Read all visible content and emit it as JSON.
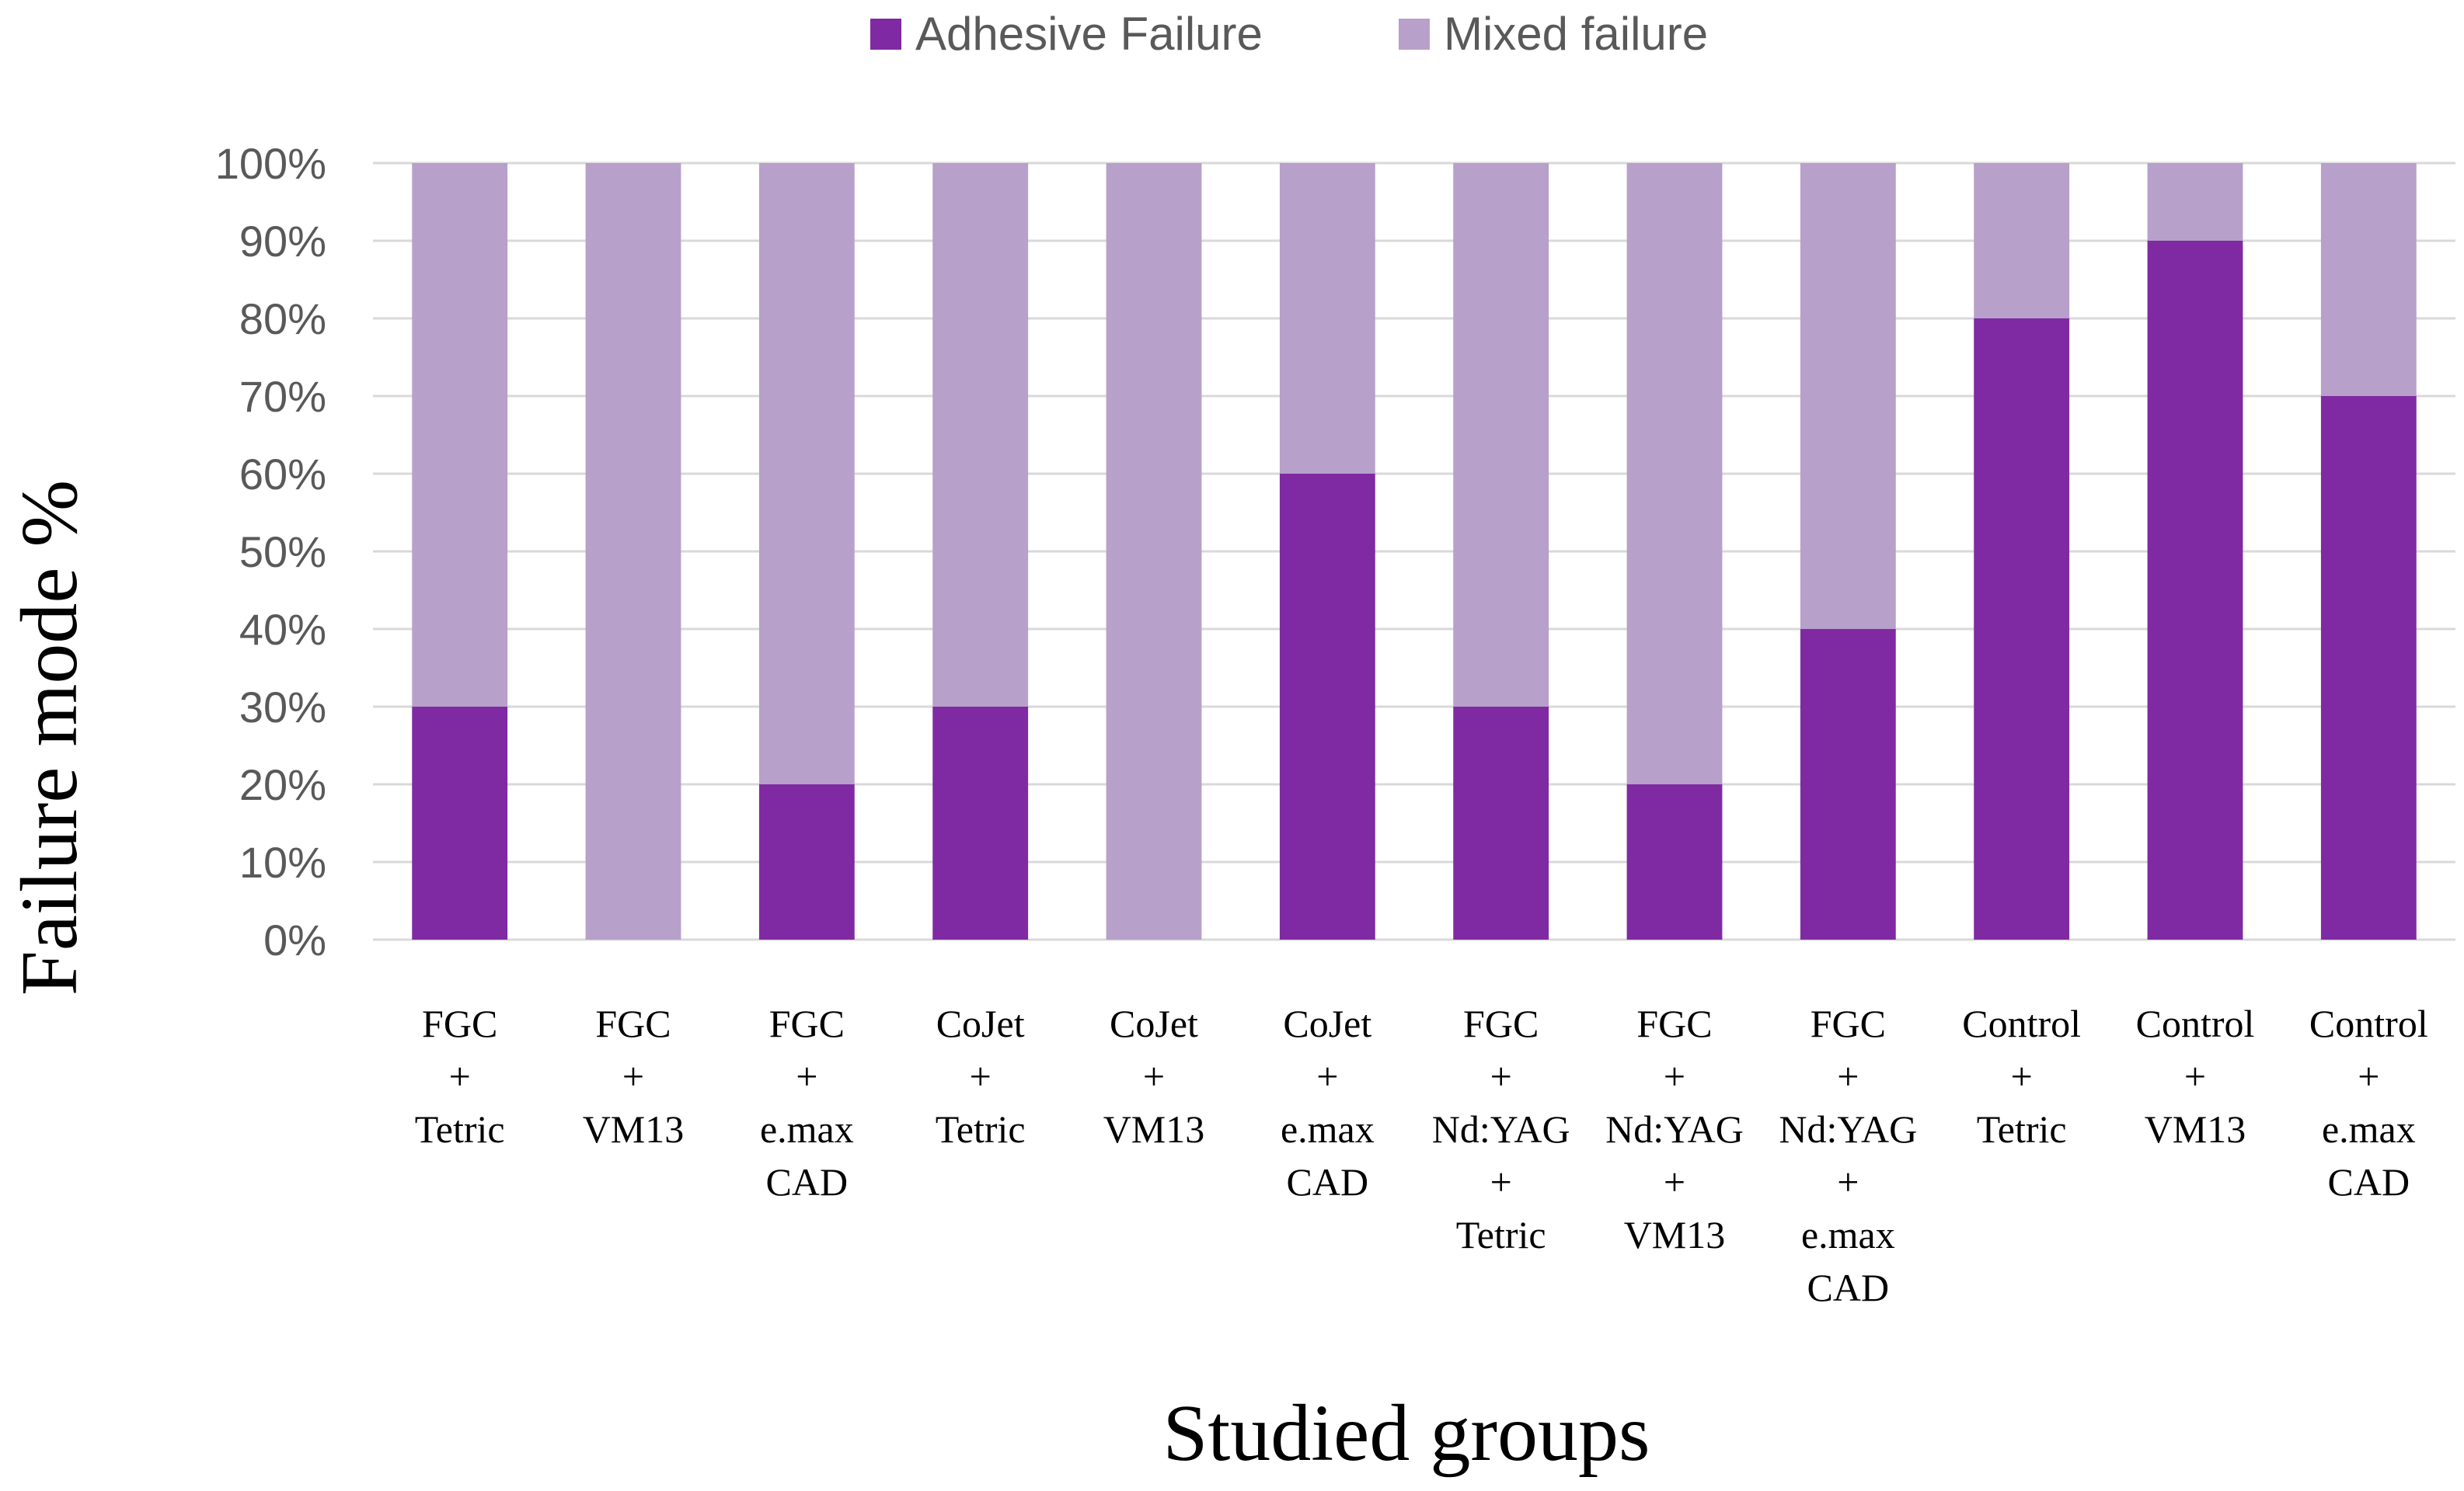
{
  "chart_data": {
    "type": "bar",
    "stacked": true,
    "title": "",
    "xlabel": "Studied groups",
    "ylabel": "Failure mode %",
    "ylim": [
      0,
      100
    ],
    "yticks": [
      "0%",
      "10%",
      "20%",
      "30%",
      "40%",
      "50%",
      "60%",
      "70%",
      "80%",
      "90%",
      "100%"
    ],
    "grid": true,
    "legend_position": "top-center",
    "categories": [
      [
        "FGC",
        "+",
        "Tetric"
      ],
      [
        "FGC",
        "+",
        "VM13"
      ],
      [
        "FGC",
        "+",
        "e.max",
        "CAD"
      ],
      [
        "CoJet",
        "+",
        "Tetric"
      ],
      [
        "CoJet",
        "+",
        "VM13"
      ],
      [
        "CoJet",
        "+",
        "e.max",
        "CAD"
      ],
      [
        "FGC",
        "+",
        "Nd:YAG",
        "+",
        "Tetric"
      ],
      [
        "FGC",
        "+",
        "Nd:YAG",
        "+",
        "VM13"
      ],
      [
        "FGC",
        "+",
        "Nd:YAG",
        "+",
        "e.max",
        "CAD"
      ],
      [
        "Control",
        "+",
        "Tetric"
      ],
      [
        "Control",
        "+",
        "VM13"
      ],
      [
        "Control",
        "+",
        "e.max",
        "CAD"
      ]
    ],
    "series": [
      {
        "name": "Adhesive Failure",
        "color": "#7f2aa2",
        "values": [
          30,
          0,
          20,
          30,
          0,
          60,
          30,
          20,
          40,
          80,
          90,
          70
        ]
      },
      {
        "name": "Mixed failure",
        "color": "#b7a0c9",
        "values": [
          70,
          100,
          80,
          70,
          100,
          40,
          70,
          80,
          60,
          20,
          10,
          30
        ]
      }
    ]
  }
}
